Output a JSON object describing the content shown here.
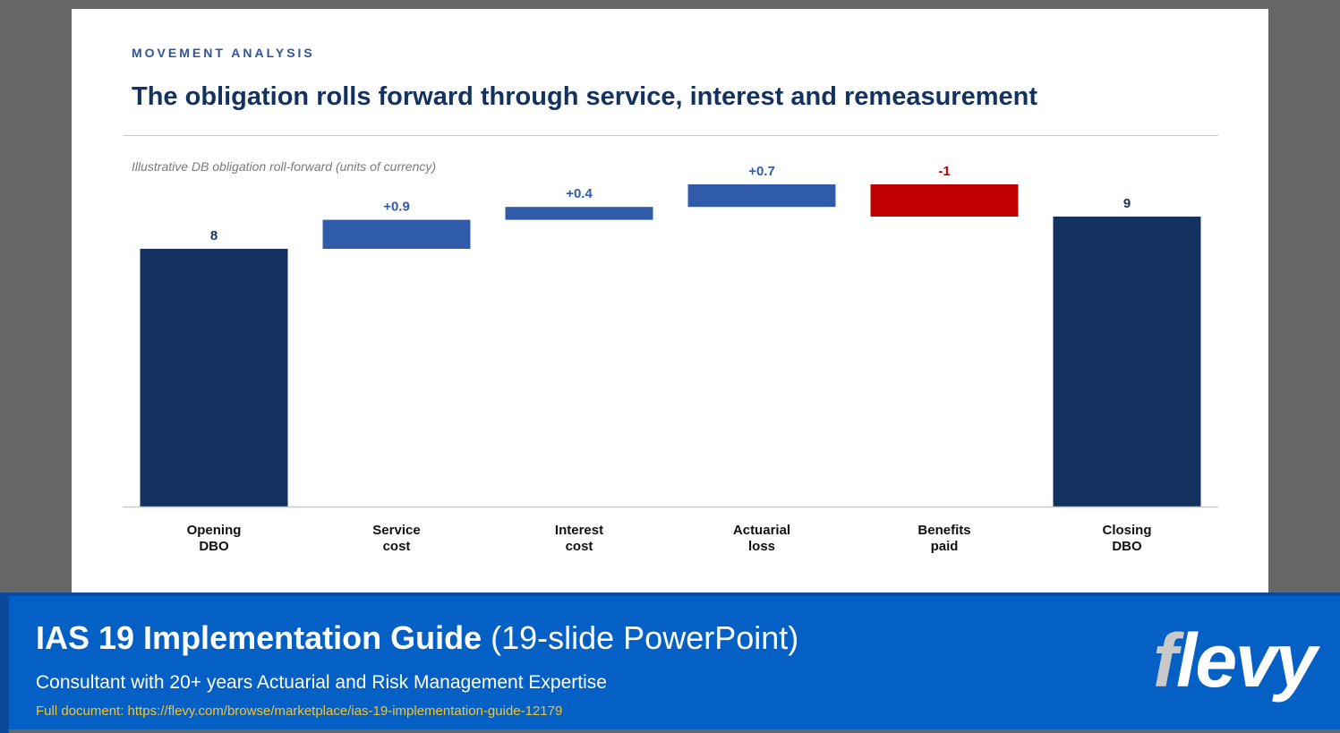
{
  "slide": {
    "eyebrow": "MOVEMENT ANALYSIS",
    "title": "The obligation rolls forward through service, interest and remeasurement",
    "subtitle": "Illustrative DB obligation roll-forward (units of currency)"
  },
  "chart_data": {
    "type": "bar",
    "subtype": "waterfall",
    "title": "",
    "xlabel": "",
    "ylabel": "",
    "ylim": [
      0,
      10.0
    ],
    "grid": false,
    "categories": [
      [
        "Opening",
        "DBO"
      ],
      [
        "Service",
        "cost"
      ],
      [
        "Interest",
        "cost"
      ],
      [
        "Actuarial",
        "loss"
      ],
      [
        "Benefits",
        "paid"
      ],
      [
        "Closing",
        "DBO"
      ]
    ],
    "steps": [
      {
        "kind": "total",
        "start": 0,
        "end": 8.0,
        "label": "8"
      },
      {
        "kind": "delta",
        "start": 8.0,
        "end": 8.9,
        "label": "+0.9"
      },
      {
        "kind": "delta",
        "start": 8.9,
        "end": 9.3,
        "label": "+0.4"
      },
      {
        "kind": "delta",
        "start": 9.3,
        "end": 10.0,
        "label": "+0.7"
      },
      {
        "kind": "delta",
        "start": 10.0,
        "end": 9.0,
        "label": "-1"
      },
      {
        "kind": "total",
        "start": 0,
        "end": 9.0,
        "label": "9"
      }
    ],
    "colors": {
      "total": "#14325f",
      "increase": "#2f5baa",
      "decrease": "#c00000",
      "label_total": "#14325f",
      "label_increase": "#2f5baa",
      "label_decrease": "#c00000",
      "category_label": "#111111",
      "axis": "#c8c8c8"
    }
  },
  "footer": {
    "title_bold": "IAS 19 Implementation Guide",
    "title_light": "(19-slide PowerPoint)",
    "subtitle": "Consultant with 20+ years Actuarial and Risk Management Expertise",
    "link": "Full document: https://flevy.com/browse/marketplace/ias-19-implementation-guide-12179",
    "logo_first": "f",
    "logo_rest": "levy"
  }
}
